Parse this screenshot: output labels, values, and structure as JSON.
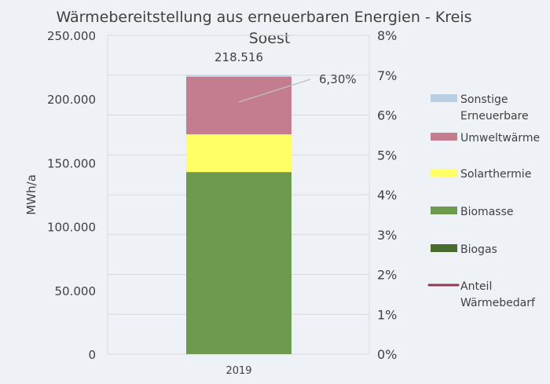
{
  "chart_data": {
    "type": "bar",
    "stacked": true,
    "title": "Wärmebereitstellung aus erneuerbaren Energien - Kreis Soest",
    "title_lines": [
      "Wärmebereitstellung aus erneuerbaren Energien - Kreis",
      "Soest"
    ],
    "ylabel": "MWh/a",
    "ylim": [
      0,
      250000
    ],
    "y_ticks": [
      "0",
      "50.000",
      "100.000",
      "150.000",
      "200.000",
      "250.000"
    ],
    "y2lim": [
      0,
      8
    ],
    "y2_ticks": [
      "0%",
      "1%",
      "2%",
      "3%",
      "4%",
      "5%",
      "6%",
      "7%",
      "8%"
    ],
    "categories": [
      "2019"
    ],
    "total_label": "218.516",
    "grid": true,
    "legend_position": "right",
    "series": [
      {
        "name": "Biogas",
        "values": [
          0
        ],
        "color": "#4a6b2e"
      },
      {
        "name": "Biomasse",
        "values": [
          142800
        ],
        "color": "#6e9a4f"
      },
      {
        "name": "Solarthermie",
        "values": [
          29600
        ],
        "color": "#ffff66"
      },
      {
        "name": "Umweltwärme",
        "values": [
          45100
        ],
        "color": "#c47d8e"
      },
      {
        "name": "Sonstige Erneuerbare",
        "values": [
          1016
        ],
        "color": "#b8cfe2"
      }
    ],
    "line_series": {
      "name": "Anteil Wärmebedarf",
      "values": [
        6.3
      ],
      "label": "6,30%",
      "color": "#8b3a52",
      "axis": "secondary"
    },
    "legend": [
      {
        "lines": [
          "Sonstige",
          "Erneuerbare"
        ],
        "color": "#b8cfe2",
        "kind": "box"
      },
      {
        "lines": [
          "Umweltwärme"
        ],
        "color": "#c47d8e",
        "kind": "box"
      },
      {
        "lines": [
          "Solarthermie"
        ],
        "color": "#ffff66",
        "kind": "box"
      },
      {
        "lines": [
          "Biomasse"
        ],
        "color": "#6e9a4f",
        "kind": "box"
      },
      {
        "lines": [
          "Biogas"
        ],
        "color": "#4a6b2e",
        "kind": "box"
      },
      {
        "lines": [
          "Anteil",
          "Wärmebedarf"
        ],
        "color": "#8b3a52",
        "kind": "line"
      }
    ]
  }
}
